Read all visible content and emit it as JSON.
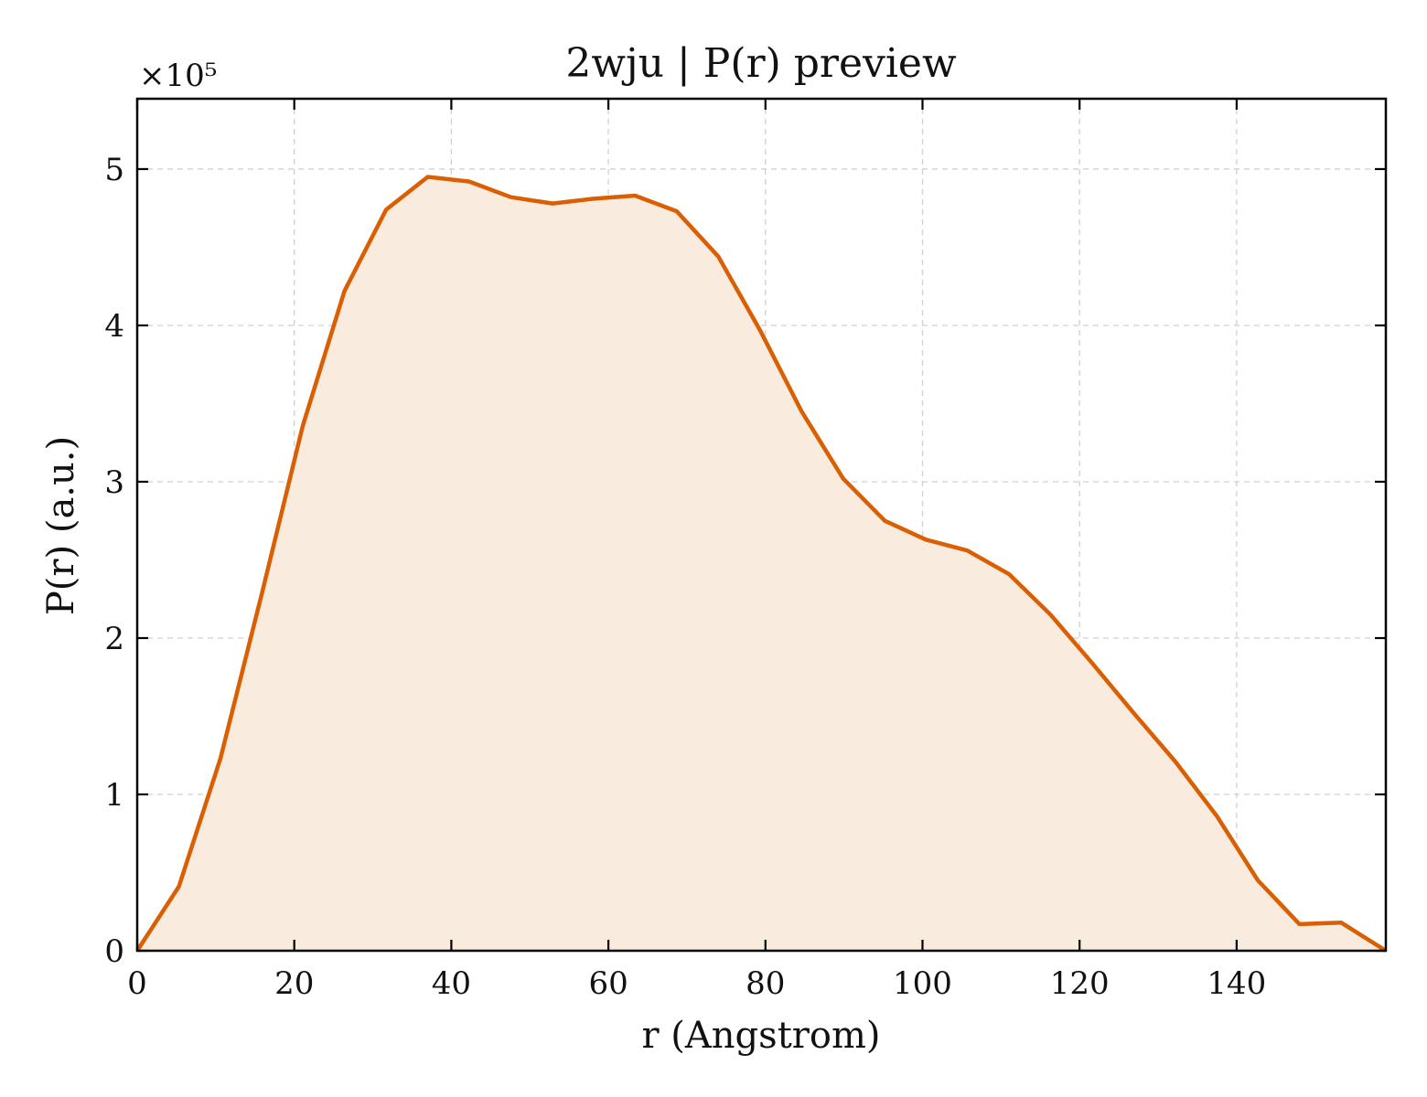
{
  "chart_data": {
    "type": "area",
    "title": "2wju | P(r) preview",
    "xlabel": "r (Angstrom)",
    "ylabel": "P(r) (a.u.)",
    "y_scale_factor_label": "×10⁵",
    "xlim": [
      0,
      159
    ],
    "ylim": [
      0,
      5.45
    ],
    "grid": true,
    "x_ticks": [
      0,
      20,
      40,
      60,
      80,
      100,
      120,
      140
    ],
    "y_ticks": [
      0,
      1,
      2,
      3,
      4,
      5
    ],
    "line_color": "#d95f02",
    "fill_color": "#faebdf",
    "series": [
      {
        "x": [
          0,
          5.3,
          10.6,
          15.9,
          21.1,
          26.4,
          31.7,
          37.0,
          42.3,
          47.6,
          52.9,
          58.1,
          63.4,
          68.7,
          74.0,
          79.3,
          84.6,
          89.9,
          95.2,
          100.4,
          105.7,
          111.0,
          116.3,
          121.6,
          126.9,
          132.2,
          137.5,
          142.7,
          148.0,
          153.3,
          159.0
        ],
        "y": [
          0,
          0.41,
          1.23,
          2.29,
          3.36,
          4.22,
          4.74,
          4.95,
          4.92,
          4.82,
          4.78,
          4.81,
          4.83,
          4.73,
          4.44,
          3.97,
          3.45,
          3.02,
          2.75,
          2.63,
          2.56,
          2.41,
          2.15,
          1.84,
          1.52,
          1.21,
          0.86,
          0.45,
          0.17,
          0.18,
          0
        ]
      }
    ]
  }
}
